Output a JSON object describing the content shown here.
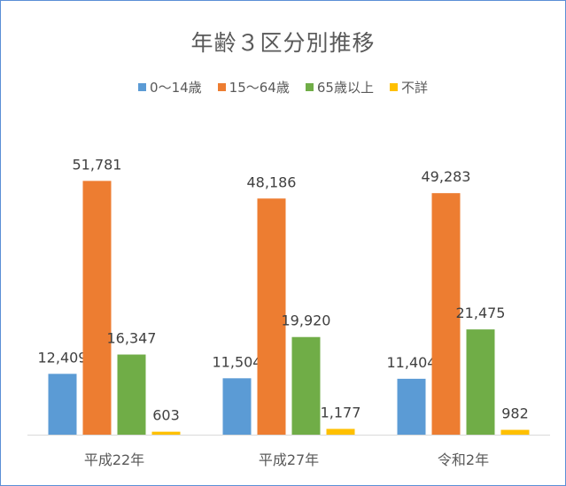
{
  "chart_data": {
    "type": "bar",
    "title": "年齢３区分別推移",
    "categories": [
      "平成22年",
      "平成27年",
      "令和2年"
    ],
    "series": [
      {
        "name": "0～14歳",
        "color": "#5b9bd5",
        "values": [
          12409,
          11504,
          11404
        ]
      },
      {
        "name": "15～64歳",
        "color": "#ed7d31",
        "values": [
          51781,
          48186,
          49283
        ]
      },
      {
        "name": "65歳以上",
        "color": "#70ad47",
        "values": [
          16347,
          19920,
          21475
        ]
      },
      {
        "name": "不詳",
        "color": "#ffc000",
        "values": [
          603,
          1177,
          982
        ]
      }
    ],
    "data_labels": [
      [
        "12,409",
        "51,781",
        "16,347",
        "603"
      ],
      [
        "11,504",
        "48,186",
        "19,920",
        "1,177"
      ],
      [
        "11,404",
        "49,283",
        "21,475",
        "982"
      ]
    ],
    "ylim": [
      0,
      56000
    ],
    "grid": false,
    "legend_position": "top"
  }
}
